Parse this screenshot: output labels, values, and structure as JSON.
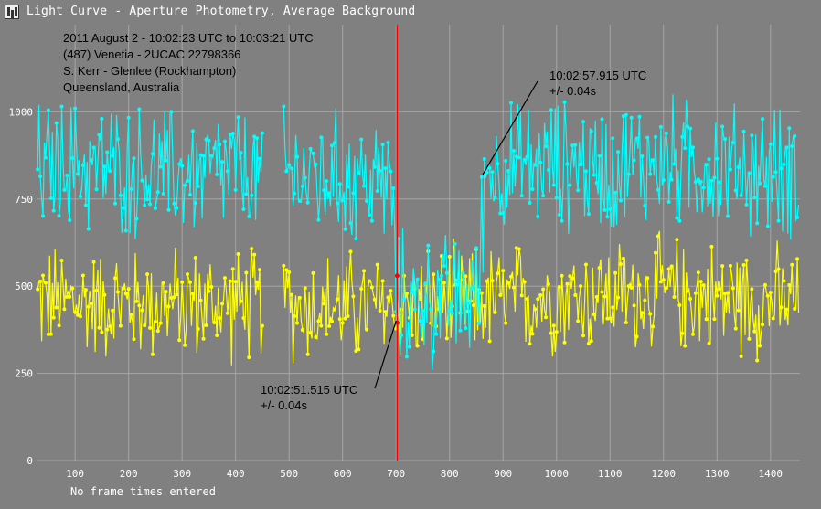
{
  "window": {
    "title": "Light Curve - Aperture Photometry, Average Background",
    "status": "No frame times entered"
  },
  "chart_data": {
    "type": "line",
    "x_ticks": [
      100,
      200,
      300,
      400,
      500,
      600,
      700,
      800,
      900,
      1000,
      1100,
      1200,
      1300,
      1400
    ],
    "y_ticks": [
      0,
      250,
      500,
      750,
      1000
    ],
    "xlim": [
      28,
      1455
    ],
    "ylim": [
      0,
      1250
    ],
    "grid": true,
    "colors": {
      "target": "#00ffff",
      "comparison": "#ffff00",
      "marker": "#ff0000",
      "background": "#808080",
      "grid": "#a6a6a6",
      "text": "#000000"
    },
    "series_shape": {
      "target": [
        {
          "x": 30,
          "y": 840
        },
        {
          "x": 100,
          "y": 850
        },
        {
          "x": 200,
          "y": 830
        },
        {
          "x": 300,
          "y": 820
        },
        {
          "x": 400,
          "y": 830
        },
        {
          "x": 450,
          "y": 800
        },
        {
          "x": 490,
          "y": 820
        },
        {
          "x": 500,
          "y": 820
        },
        {
          "x": 600,
          "y": 810
        },
        {
          "x": 690,
          "y": 800
        },
        {
          "x": 700,
          "y": 470
        },
        {
          "x": 760,
          "y": 450
        },
        {
          "x": 800,
          "y": 460
        },
        {
          "x": 855,
          "y": 480
        },
        {
          "x": 865,
          "y": 830
        },
        {
          "x": 1000,
          "y": 850
        },
        {
          "x": 1100,
          "y": 840
        },
        {
          "x": 1200,
          "y": 860
        },
        {
          "x": 1300,
          "y": 840
        },
        {
          "x": 1400,
          "y": 830
        },
        {
          "x": 1455,
          "y": 820
        }
      ],
      "comparison": [
        {
          "x": 30,
          "y": 460
        },
        {
          "x": 200,
          "y": 450
        },
        {
          "x": 400,
          "y": 450
        },
        {
          "x": 600,
          "y": 440
        },
        {
          "x": 800,
          "y": 450
        },
        {
          "x": 1000,
          "y": 470
        },
        {
          "x": 1200,
          "y": 480
        },
        {
          "x": 1455,
          "y": 450
        }
      ]
    },
    "gaps": [
      [
        452,
        490
      ]
    ],
    "event_marker_x": 702,
    "annotations": [
      {
        "lines": [
          "2011 August 2 - 10:02:23 UTC to 10:03:21 UTC",
          "(487) Venetia - 2UCAC 22798366",
          "S. Kerr - Glenlee (Rockhampton)",
          "Queensland, Australia"
        ]
      },
      {
        "lines": [
          "10:02:57.915 UTC",
          "+/- 0.04s"
        ],
        "pointer_to": {
          "x": 862,
          "y": 820
        }
      },
      {
        "lines": [
          "10:02:51.515 UTC",
          "+/- 0.04s"
        ],
        "pointer_to": {
          "x": 700,
          "y": 400
        }
      }
    ]
  }
}
